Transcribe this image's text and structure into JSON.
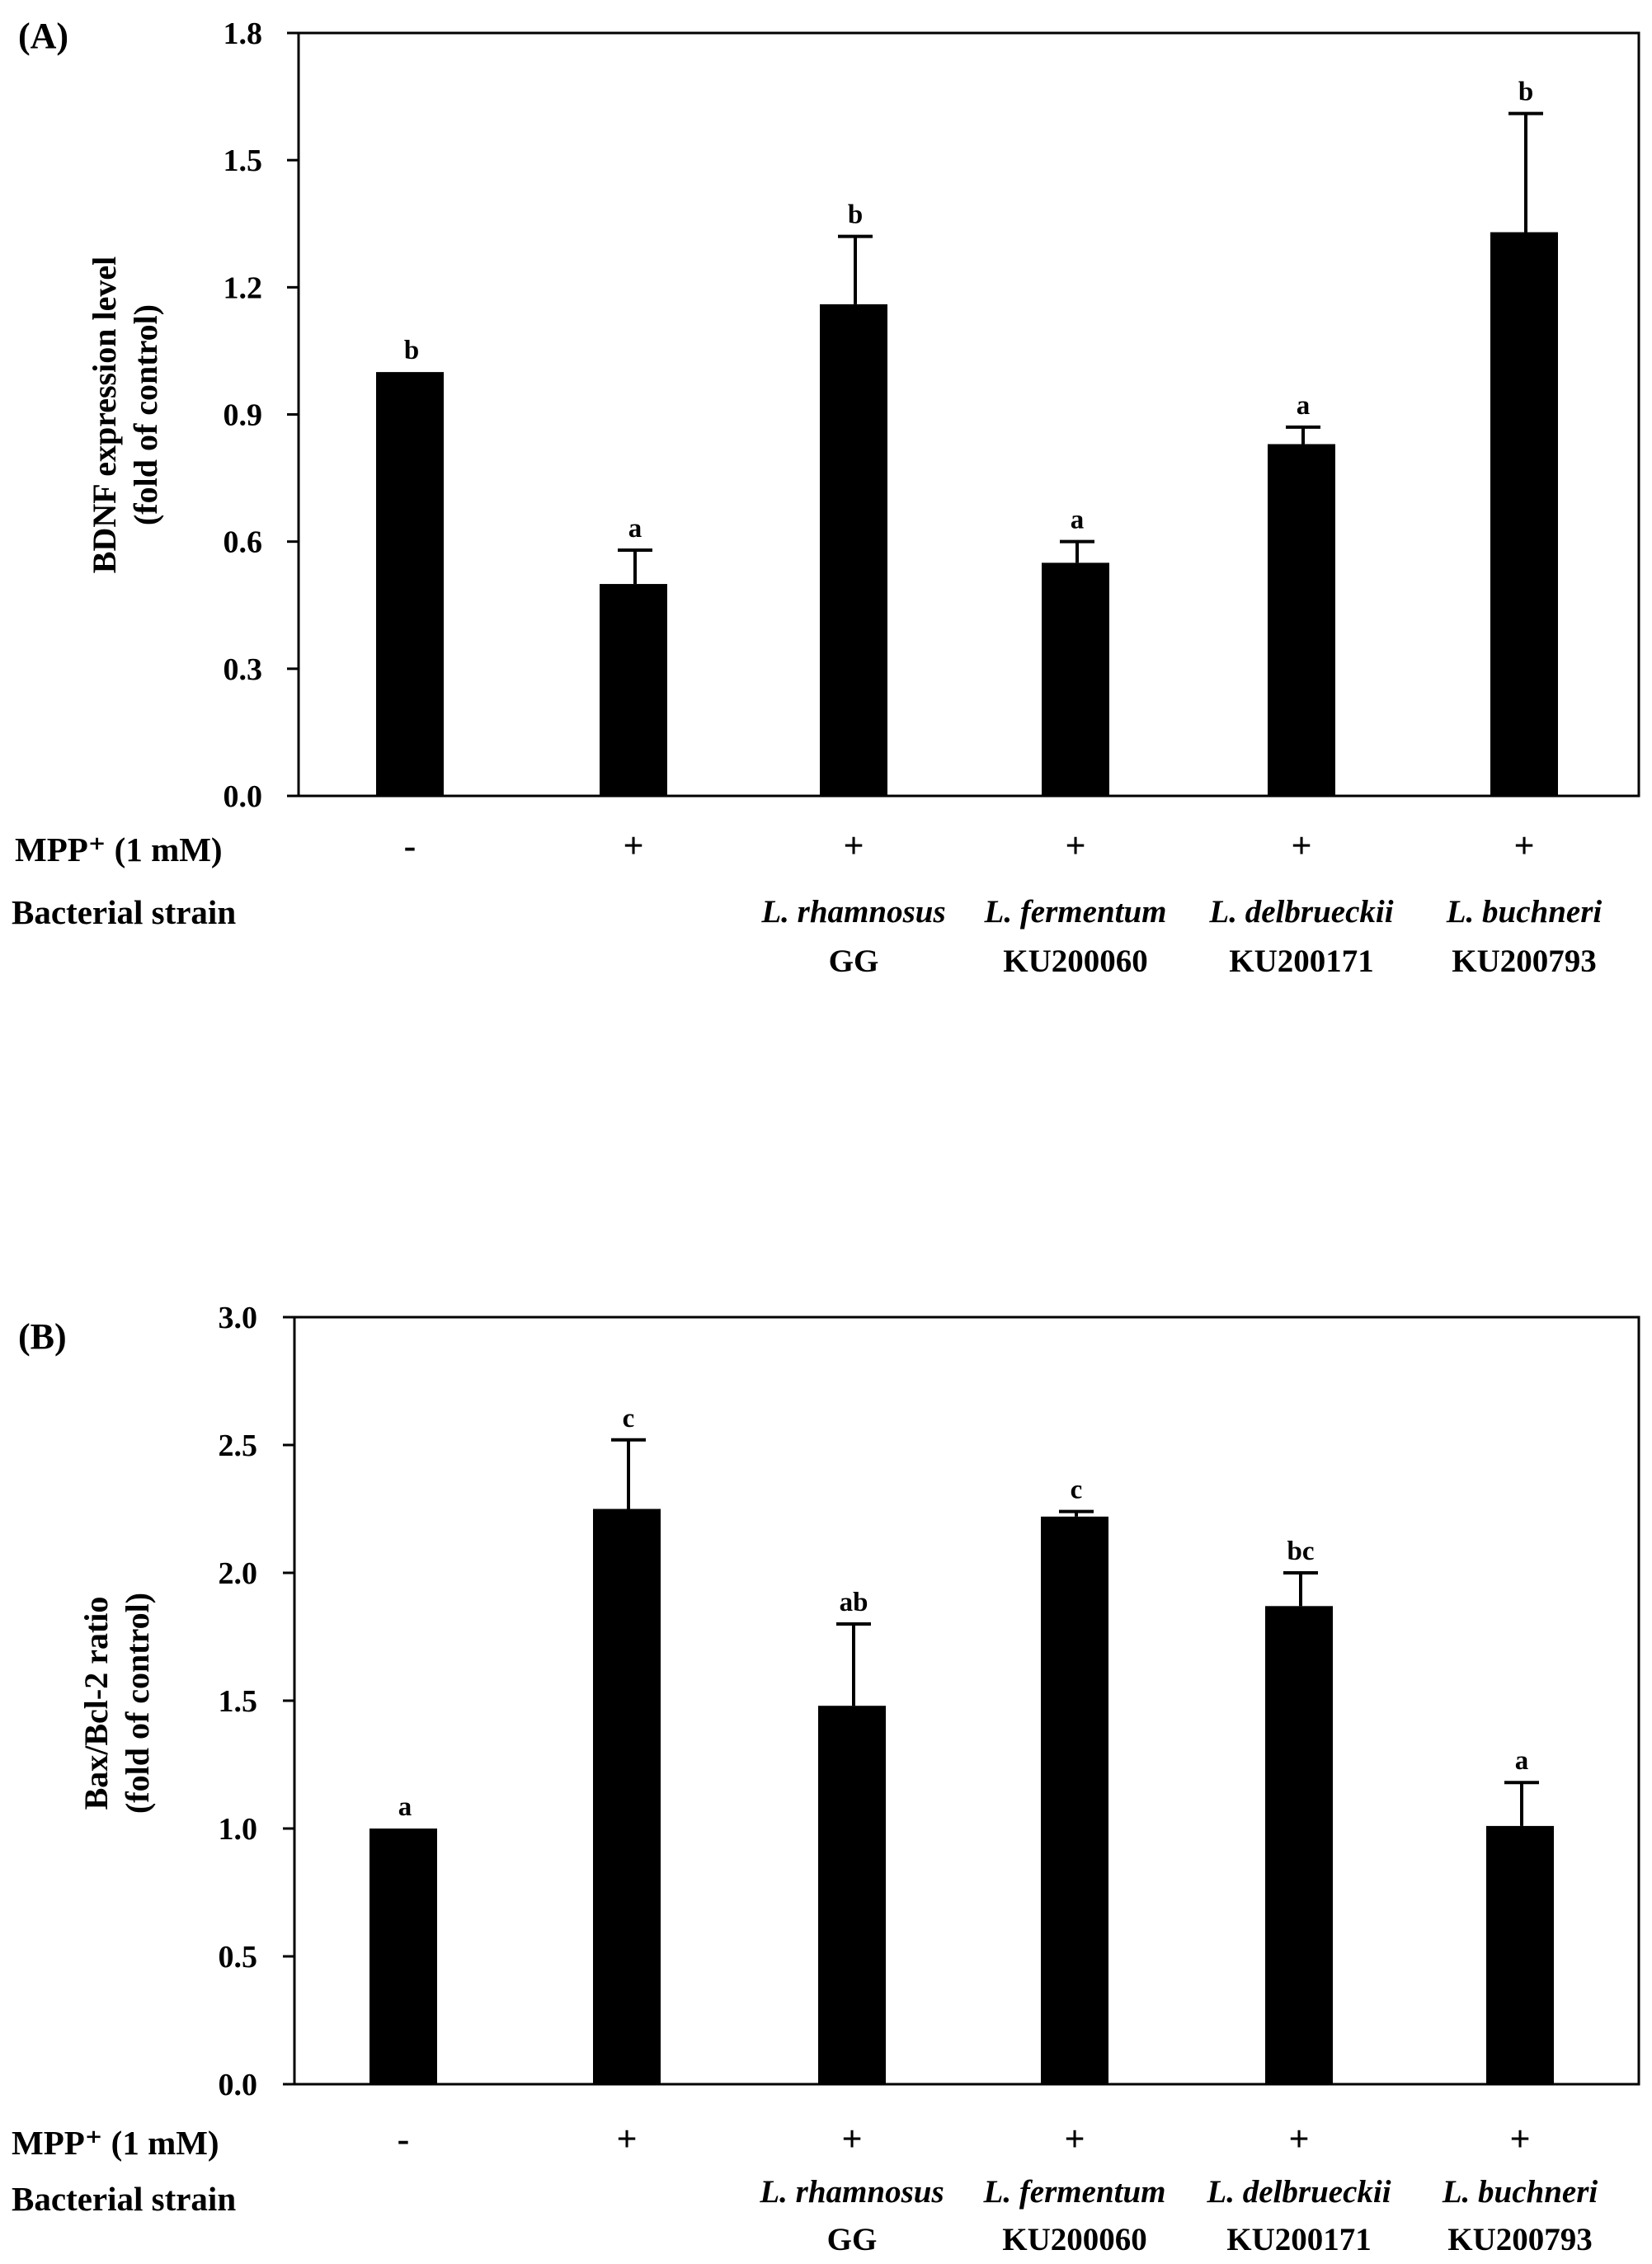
{
  "treatment_row_label": "MPP⁺ (1 mM)",
  "strain_row_label": "Bacterial strain",
  "mpp_treatment": [
    "-",
    "+",
    "+",
    "+",
    "+",
    "+"
  ],
  "strain_names": [
    "",
    "",
    "L. rhamnosus",
    "L. fermentum",
    "L. delbrueckii",
    "L. buchneri"
  ],
  "strain_ids": [
    "",
    "",
    "GG",
    "KU200060",
    "KU200171",
    "KU200793"
  ],
  "chart_data": [
    {
      "panel": "(A)",
      "type": "bar",
      "ylabel_lines": [
        "BDNF expression level",
        "(fold of control)"
      ],
      "ylim": [
        0,
        1.8
      ],
      "yticks": [
        "0.0",
        "0.3",
        "0.6",
        "0.9",
        "1.2",
        "1.5",
        "1.8"
      ],
      "values": [
        1.0,
        0.5,
        1.16,
        0.55,
        0.83,
        1.33
      ],
      "errors": [
        0,
        0.08,
        0.16,
        0.05,
        0.04,
        0.28
      ],
      "significance": [
        "b",
        "a",
        "b",
        "a",
        "a",
        "b"
      ],
      "bar_color": "#000000"
    },
    {
      "panel": "(B)",
      "type": "bar",
      "ylabel_lines": [
        "Bax/Bcl-2 ratio",
        "(fold of control)"
      ],
      "ylim": [
        0,
        3.0
      ],
      "yticks": [
        "0.0",
        "0.5",
        "1.0",
        "1.5",
        "2.0",
        "2.5",
        "3.0"
      ],
      "values": [
        1.0,
        2.25,
        1.48,
        2.22,
        1.87,
        1.01
      ],
      "errors": [
        0,
        0.27,
        0.32,
        0.02,
        0.13,
        0.17
      ],
      "significance": [
        "a",
        "c",
        "ab",
        "c",
        "bc",
        "a"
      ],
      "bar_color": "#000000"
    }
  ]
}
